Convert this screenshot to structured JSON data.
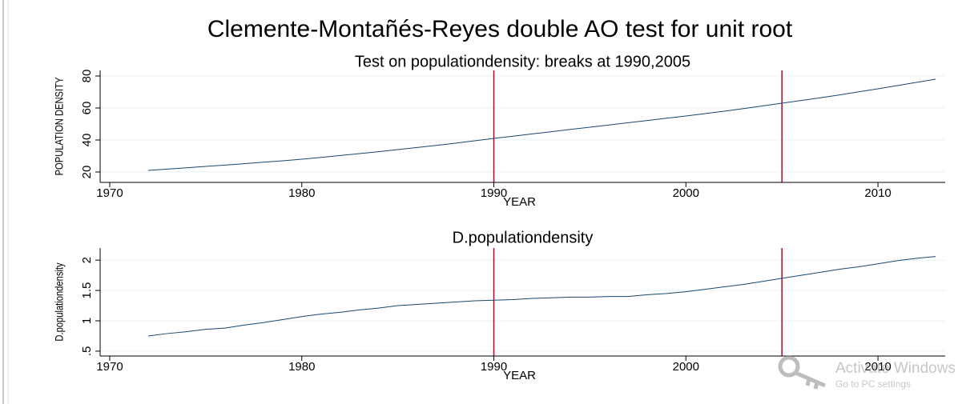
{
  "title": "Clemente-Montañés-Reyes double AO test for unit root",
  "chart_data": [
    {
      "type": "line",
      "title": "Test on populationdensity: breaks at 1990,2005",
      "x_label": "YEAR",
      "y_label": "POPULATION DENSITY",
      "x": [
        1972,
        1973,
        1974,
        1975,
        1976,
        1977,
        1978,
        1979,
        1980,
        1981,
        1982,
        1983,
        1984,
        1985,
        1986,
        1987,
        1988,
        1989,
        1990,
        1991,
        1992,
        1993,
        1994,
        1995,
        1996,
        1997,
        1998,
        1999,
        2000,
        2001,
        2002,
        2003,
        2004,
        2005,
        2006,
        2007,
        2008,
        2009,
        2010,
        2011,
        2012,
        2013
      ],
      "series": [
        {
          "name": "populationdensity",
          "color": "#1a476f",
          "values": [
            21.0,
            21.8,
            22.6,
            23.5,
            24.3,
            25.2,
            26.1,
            27.0,
            28.0,
            29.1,
            30.3,
            31.5,
            32.7,
            34.0,
            35.3,
            36.6,
            38.0,
            39.5,
            41.0,
            42.4,
            43.8,
            45.2,
            46.6,
            48.0,
            49.4,
            50.8,
            52.2,
            53.6,
            55.0,
            56.5,
            58.0,
            59.6,
            61.3,
            63.0,
            64.7,
            66.4,
            68.2,
            70.1,
            72.0,
            74.0,
            76.0,
            78.0
          ]
        }
      ],
      "breaks": [
        1990,
        2005
      ],
      "break_color": "#a0112c",
      "xlim": [
        1969.5,
        2013.5
      ],
      "xticks": [
        1970,
        1980,
        1990,
        2000,
        2010
      ],
      "ylim": [
        13.5,
        83.5
      ],
      "yticks": [
        20,
        40,
        60,
        80
      ],
      "grid": true
    },
    {
      "type": "line",
      "title": "D.populationdensity",
      "x_label": "YEAR",
      "y_label": "D.populationdensity",
      "x": [
        1972,
        1973,
        1974,
        1975,
        1976,
        1977,
        1978,
        1979,
        1980,
        1981,
        1982,
        1983,
        1984,
        1985,
        1986,
        1987,
        1988,
        1989,
        1990,
        1991,
        1992,
        1993,
        1994,
        1995,
        1996,
        1997,
        1998,
        1999,
        2000,
        2001,
        2002,
        2003,
        2004,
        2005,
        2006,
        2007,
        2008,
        2009,
        2010,
        2011,
        2012,
        2013
      ],
      "series": [
        {
          "name": "D.populationdensity",
          "color": "#1a476f",
          "values": [
            0.75,
            0.79,
            0.82,
            0.86,
            0.88,
            0.93,
            0.97,
            1.02,
            1.07,
            1.11,
            1.14,
            1.18,
            1.21,
            1.25,
            1.27,
            1.29,
            1.31,
            1.33,
            1.34,
            1.35,
            1.37,
            1.38,
            1.39,
            1.39,
            1.4,
            1.4,
            1.43,
            1.45,
            1.48,
            1.52,
            1.56,
            1.6,
            1.65,
            1.7,
            1.75,
            1.8,
            1.85,
            1.89,
            1.94,
            1.99,
            2.03,
            2.06
          ]
        }
      ],
      "breaks": [
        1990,
        2005
      ],
      "break_color": "#a0112c",
      "xlim": [
        1969.5,
        2013.5
      ],
      "xticks": [
        1970,
        1980,
        1990,
        2000,
        2010
      ],
      "ylim": [
        0.42,
        2.2
      ],
      "yticks": [
        {
          "value": 0.5,
          "label": ".5"
        },
        1,
        1.5,
        2
      ],
      "grid": true
    }
  ],
  "watermark": {
    "title": "Activate Windows",
    "subtitle": "Go to PC settings"
  }
}
